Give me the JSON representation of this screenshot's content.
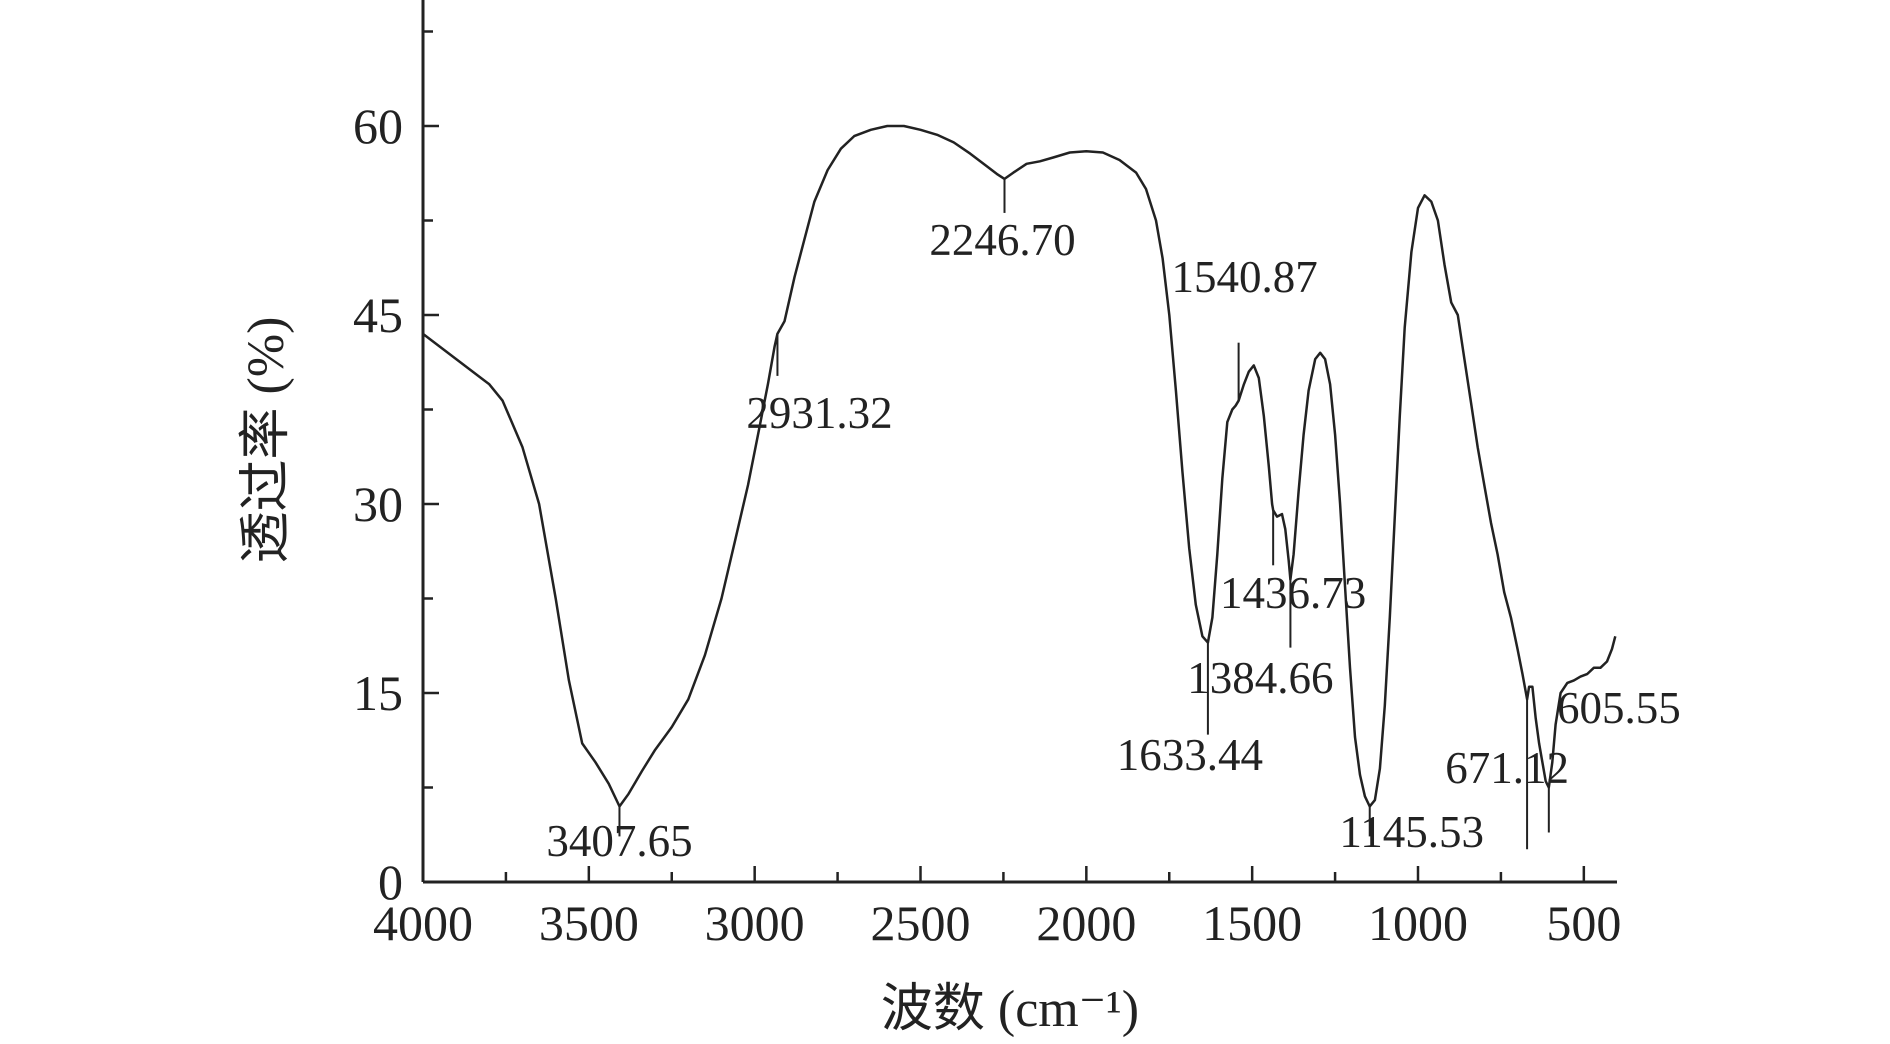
{
  "chart_data": {
    "type": "line",
    "title": "",
    "xlabel": "波数 (cm⁻¹)",
    "ylabel": "透过率 (%)",
    "xlim": [
      4000,
      400
    ],
    "ylim": [
      0,
      70
    ],
    "x_reversed": true,
    "x_ticks": [
      4000,
      3500,
      3000,
      2500,
      2000,
      1500,
      1000,
      500
    ],
    "y_ticks": [
      0,
      15,
      30,
      45,
      60
    ],
    "grid": false,
    "series": [
      {
        "name": "",
        "color": "#222222",
        "points": [
          [
            4000,
            43.5
          ],
          [
            3900,
            41.5
          ],
          [
            3800,
            39.5
          ],
          [
            3760,
            38.2
          ],
          [
            3700,
            34.5
          ],
          [
            3650,
            30.0
          ],
          [
            3600,
            22.5
          ],
          [
            3560,
            16.0
          ],
          [
            3520,
            11.0
          ],
          [
            3480,
            9.5
          ],
          [
            3440,
            7.8
          ],
          [
            3407.65,
            6.0
          ],
          [
            3380,
            7.0
          ],
          [
            3340,
            8.8
          ],
          [
            3300,
            10.5
          ],
          [
            3250,
            12.3
          ],
          [
            3200,
            14.5
          ],
          [
            3150,
            18.0
          ],
          [
            3100,
            22.5
          ],
          [
            3060,
            27.0
          ],
          [
            3020,
            31.5
          ],
          [
            2990,
            35.5
          ],
          [
            2960,
            39.5
          ],
          [
            2940,
            42.5
          ],
          [
            2931.32,
            43.5
          ],
          [
            2910,
            44.5
          ],
          [
            2880,
            48.0
          ],
          [
            2850,
            51.0
          ],
          [
            2820,
            54.0
          ],
          [
            2780,
            56.5
          ],
          [
            2740,
            58.2
          ],
          [
            2700,
            59.2
          ],
          [
            2650,
            59.7
          ],
          [
            2600,
            60.0
          ],
          [
            2550,
            60.0
          ],
          [
            2500,
            59.7
          ],
          [
            2450,
            59.3
          ],
          [
            2400,
            58.7
          ],
          [
            2350,
            57.8
          ],
          [
            2300,
            56.8
          ],
          [
            2270,
            56.2
          ],
          [
            2246.7,
            55.8
          ],
          [
            2220,
            56.3
          ],
          [
            2180,
            57.0
          ],
          [
            2140,
            57.2
          ],
          [
            2100,
            57.5
          ],
          [
            2050,
            57.9
          ],
          [
            2000,
            58.0
          ],
          [
            1950,
            57.9
          ],
          [
            1900,
            57.3
          ],
          [
            1850,
            56.3
          ],
          [
            1820,
            55.0
          ],
          [
            1790,
            52.5
          ],
          [
            1770,
            49.5
          ],
          [
            1750,
            45.0
          ],
          [
            1730,
            39.0
          ],
          [
            1710,
            32.5
          ],
          [
            1690,
            26.5
          ],
          [
            1670,
            22.0
          ],
          [
            1650,
            19.5
          ],
          [
            1633.44,
            19.0
          ],
          [
            1620,
            21.0
          ],
          [
            1605,
            26.0
          ],
          [
            1590,
            32.0
          ],
          [
            1575,
            36.5
          ],
          [
            1560,
            37.5
          ],
          [
            1550,
            37.8
          ],
          [
            1540.87,
            38.2
          ],
          [
            1525,
            39.5
          ],
          [
            1510,
            40.5
          ],
          [
            1495,
            41.0
          ],
          [
            1480,
            40.0
          ],
          [
            1465,
            37.0
          ],
          [
            1450,
            33.0
          ],
          [
            1440,
            30.0
          ],
          [
            1436.73,
            29.5
          ],
          [
            1425,
            29.0
          ],
          [
            1410,
            29.2
          ],
          [
            1400,
            28.0
          ],
          [
            1390,
            25.5
          ],
          [
            1384.66,
            24.0
          ],
          [
            1375,
            26.0
          ],
          [
            1360,
            31.0
          ],
          [
            1345,
            35.5
          ],
          [
            1330,
            39.0
          ],
          [
            1310,
            41.5
          ],
          [
            1295,
            42.0
          ],
          [
            1280,
            41.5
          ],
          [
            1265,
            39.5
          ],
          [
            1250,
            35.5
          ],
          [
            1235,
            30.0
          ],
          [
            1220,
            23.5
          ],
          [
            1205,
            17.0
          ],
          [
            1190,
            11.5
          ],
          [
            1175,
            8.5
          ],
          [
            1160,
            6.8
          ],
          [
            1145.53,
            6.0
          ],
          [
            1130,
            6.5
          ],
          [
            1115,
            9.0
          ],
          [
            1100,
            14.0
          ],
          [
            1085,
            21.0
          ],
          [
            1070,
            29.0
          ],
          [
            1055,
            37.0
          ],
          [
            1040,
            44.0
          ],
          [
            1020,
            50.0
          ],
          [
            1000,
            53.5
          ],
          [
            980,
            54.5
          ],
          [
            960,
            54.0
          ],
          [
            940,
            52.5
          ],
          [
            920,
            49.0
          ],
          [
            900,
            46.0
          ],
          [
            880,
            45.0
          ],
          [
            860,
            41.5
          ],
          [
            840,
            38.0
          ],
          [
            820,
            34.5
          ],
          [
            800,
            31.5
          ],
          [
            780,
            28.5
          ],
          [
            760,
            26.0
          ],
          [
            740,
            23.0
          ],
          [
            720,
            21.0
          ],
          [
            700,
            18.5
          ],
          [
            685,
            16.5
          ],
          [
            671.12,
            14.5
          ],
          [
            665,
            15.5
          ],
          [
            655,
            15.5
          ],
          [
            645,
            13.0
          ],
          [
            635,
            11.0
          ],
          [
            625,
            9.5
          ],
          [
            615,
            8.0
          ],
          [
            605.55,
            7.5
          ],
          [
            595,
            9.5
          ],
          [
            585,
            12.5
          ],
          [
            570,
            15.0
          ],
          [
            550,
            15.8
          ],
          [
            530,
            16.0
          ],
          [
            510,
            16.3
          ],
          [
            490,
            16.5
          ],
          [
            470,
            17.0
          ],
          [
            450,
            17.0
          ],
          [
            430,
            17.5
          ],
          [
            415,
            18.5
          ],
          [
            405,
            19.5
          ]
        ]
      }
    ],
    "annotations": [
      {
        "label": "3407.65",
        "x": 3407.65
      },
      {
        "label": "2931.32",
        "x": 2931.32
      },
      {
        "label": "2246.70",
        "x": 2246.7
      },
      {
        "label": "1540.87",
        "x": 1540.87
      },
      {
        "label": "1436.73",
        "x": 1436.73
      },
      {
        "label": "1384.66",
        "x": 1384.66
      },
      {
        "label": "1633.44",
        "x": 1633.44
      },
      {
        "label": "1145.53",
        "x": 1145.53
      },
      {
        "label": "671.12",
        "x": 671.12
      },
      {
        "label": "605.55",
        "x": 605.55
      }
    ]
  }
}
